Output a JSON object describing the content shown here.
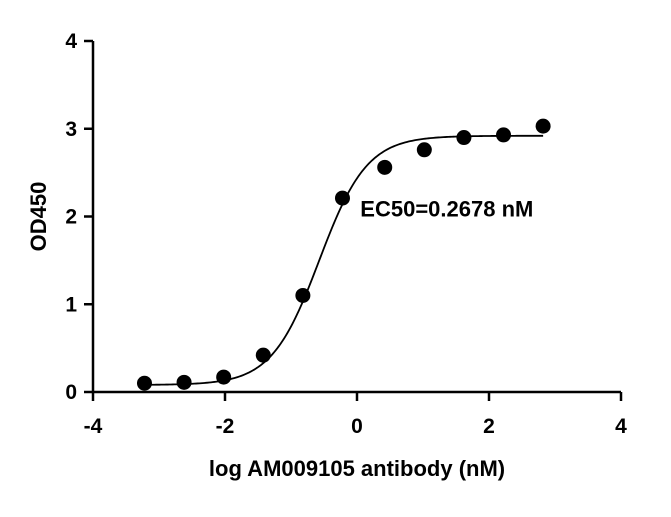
{
  "chart_data": {
    "type": "scatter",
    "xlabel": "log AM009105 antibody (nM)",
    "ylabel": "OD450",
    "xlim": [
      -4,
      4
    ],
    "ylim": [
      0,
      4
    ],
    "x_ticks": [
      -4,
      -2,
      0,
      2,
      4
    ],
    "y_ticks": [
      0,
      1,
      2,
      3,
      4
    ],
    "x_tick_labels": [
      "-4",
      "-2",
      "0",
      "2",
      "4"
    ],
    "y_tick_labels": [
      "0",
      "1",
      "2",
      "3",
      "4"
    ],
    "grid": false,
    "points": {
      "x": [
        -3.22,
        -2.62,
        -2.02,
        -1.42,
        -0.82,
        -0.22,
        0.42,
        1.02,
        1.62,
        2.22,
        2.82
      ],
      "y": [
        0.1,
        0.11,
        0.17,
        0.42,
        1.1,
        2.21,
        2.56,
        2.76,
        2.9,
        2.93,
        3.03
      ]
    },
    "fit_curve": {
      "model": "4PL",
      "bottom": 0.08,
      "top": 2.92,
      "log_ec50": -0.572,
      "hill_slope": 1.2,
      "x_range": [
        -3.22,
        2.82
      ]
    },
    "annotations": [
      {
        "text": "EC50=0.2678 nM",
        "x": 0.05,
        "y": 2.0
      }
    ],
    "colors": {
      "points": "#000000",
      "curve": "#000000",
      "axes": "#000000"
    }
  }
}
